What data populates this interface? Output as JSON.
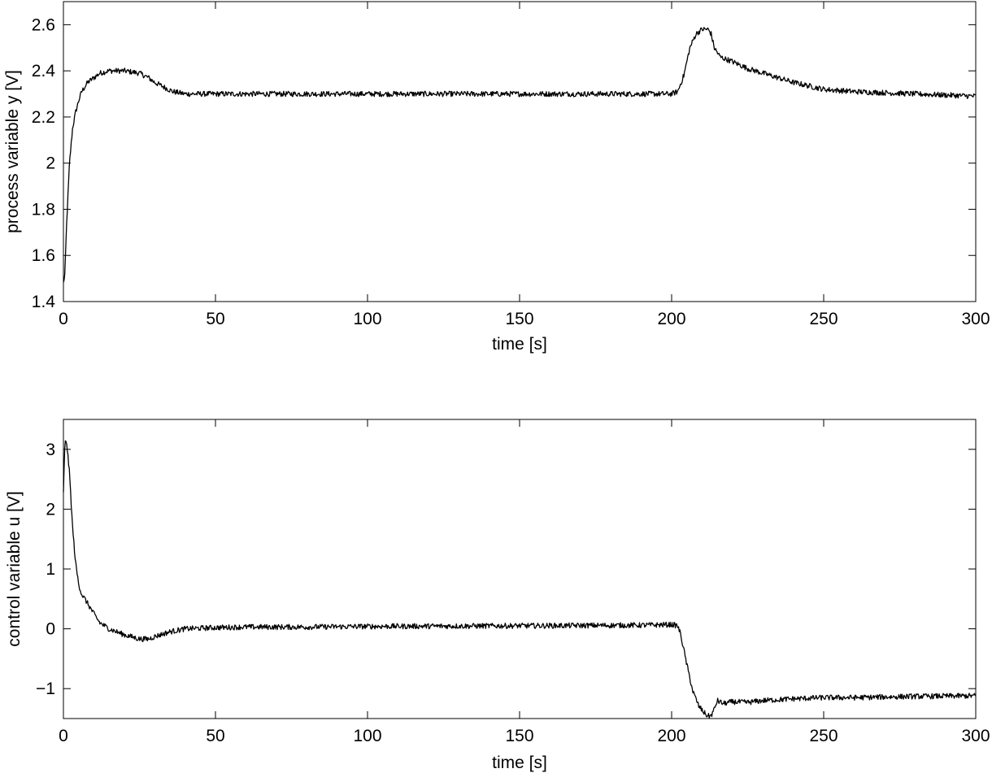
{
  "chart_data": [
    {
      "type": "line",
      "title": "",
      "xlabel": "time [s]",
      "ylabel": "process variable y [V]",
      "xlim": [
        0,
        300
      ],
      "ylim": [
        1.4,
        2.7
      ],
      "xticks": [
        0,
        50,
        100,
        150,
        200,
        250,
        300
      ],
      "xtick_labels": [
        "0",
        "50",
        "100",
        "150",
        "200",
        "250",
        "300"
      ],
      "yticks": [
        1.4,
        1.6,
        1.8,
        2.0,
        2.2,
        2.4,
        2.6
      ],
      "ytick_labels": [
        "1.4",
        "1.6",
        "1.8",
        "2",
        "2.2",
        "2.4",
        "2.6"
      ],
      "grid": false,
      "legend": "none",
      "line_color": "#000000",
      "series": [
        {
          "x": [
            0,
            0.5,
            1,
            2,
            3,
            4,
            5,
            6,
            8,
            10,
            12,
            15,
            20,
            25,
            28,
            30,
            33,
            36,
            40,
            50,
            60,
            80,
            100,
            150,
            190,
            200,
            202,
            204,
            206,
            208,
            210,
            212,
            213,
            214,
            216,
            220,
            225,
            230,
            240,
            250,
            260,
            280,
            300
          ],
          "y": [
            1.48,
            1.52,
            1.72,
            2.0,
            2.15,
            2.22,
            2.27,
            2.31,
            2.35,
            2.37,
            2.39,
            2.4,
            2.4,
            2.39,
            2.37,
            2.35,
            2.33,
            2.31,
            2.3,
            2.3,
            2.3,
            2.3,
            2.3,
            2.3,
            2.3,
            2.3,
            2.31,
            2.38,
            2.5,
            2.56,
            2.58,
            2.58,
            2.56,
            2.5,
            2.46,
            2.44,
            2.41,
            2.39,
            2.35,
            2.32,
            2.31,
            2.3,
            2.29
          ]
        }
      ]
    },
    {
      "type": "line",
      "title": "",
      "xlabel": "time [s]",
      "ylabel": "control variable u [V]",
      "xlim": [
        0,
        300
      ],
      "ylim": [
        -1.5,
        3.5
      ],
      "xticks": [
        0,
        50,
        100,
        150,
        200,
        250,
        300
      ],
      "xtick_labels": [
        "0",
        "50",
        "100",
        "150",
        "200",
        "250",
        "300"
      ],
      "yticks": [
        -1,
        0,
        1,
        2,
        3
      ],
      "ytick_labels": [
        "−1",
        "0",
        "1",
        "2",
        "3"
      ],
      "grid": false,
      "legend": "none",
      "line_color": "#000000",
      "series": [
        {
          "x": [
            0,
            0.5,
            1,
            2,
            3,
            4,
            5,
            6,
            8,
            10,
            12,
            15,
            20,
            25,
            28,
            30,
            35,
            40,
            50,
            60,
            80,
            100,
            150,
            190,
            200,
            202,
            203,
            205,
            207,
            209,
            211,
            212,
            213,
            214,
            215,
            217,
            220,
            225,
            230,
            240,
            250,
            260,
            280,
            300
          ],
          "y": [
            2.3,
            3.1,
            3.15,
            2.6,
            1.7,
            1.1,
            0.75,
            0.58,
            0.42,
            0.25,
            0.1,
            0.0,
            -0.1,
            -0.17,
            -0.17,
            -0.13,
            -0.05,
            0.0,
            0.02,
            0.03,
            0.03,
            0.04,
            0.05,
            0.06,
            0.07,
            0.05,
            -0.1,
            -0.6,
            -1.05,
            -1.3,
            -1.42,
            -1.46,
            -1.45,
            -1.35,
            -1.2,
            -1.25,
            -1.22,
            -1.23,
            -1.2,
            -1.17,
            -1.15,
            -1.15,
            -1.13,
            -1.12
          ]
        }
      ]
    }
  ]
}
